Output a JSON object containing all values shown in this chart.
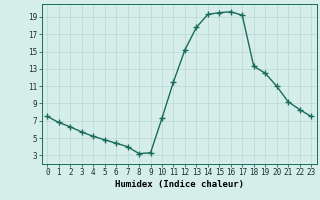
{
  "x": [
    0,
    1,
    2,
    3,
    4,
    5,
    6,
    7,
    8,
    9,
    10,
    11,
    12,
    13,
    14,
    15,
    16,
    17,
    18,
    19,
    20,
    21,
    22,
    23
  ],
  "y": [
    7.5,
    6.8,
    6.3,
    5.7,
    5.2,
    4.8,
    4.4,
    4.0,
    3.2,
    3.3,
    7.3,
    11.5,
    15.2,
    17.8,
    19.3,
    19.5,
    19.6,
    19.2,
    13.3,
    12.5,
    11.0,
    9.2,
    8.3,
    7.5
  ],
  "line_color": "#1a6b5a",
  "marker": "+",
  "marker_size": 4,
  "background_color": "#d6eeea",
  "grid_color": "#b8d8d4",
  "xlabel": "Humidex (Indice chaleur)",
  "ylabel": "",
  "xlim": [
    -0.5,
    23.5
  ],
  "ylim": [
    2.0,
    20.5
  ],
  "yticks": [
    3,
    5,
    7,
    9,
    11,
    13,
    15,
    17,
    19
  ],
  "xticks": [
    0,
    1,
    2,
    3,
    4,
    5,
    6,
    7,
    8,
    9,
    10,
    11,
    12,
    13,
    14,
    15,
    16,
    17,
    18,
    19,
    20,
    21,
    22,
    23
  ],
  "xtick_labels": [
    "0",
    "1",
    "2",
    "3",
    "4",
    "5",
    "6",
    "7",
    "8",
    "9",
    "10",
    "11",
    "12",
    "13",
    "14",
    "15",
    "16",
    "17",
    "18",
    "19",
    "20",
    "21",
    "22",
    "23"
  ],
  "line_width": 1.0,
  "tick_fontsize": 5.5,
  "xlabel_fontsize": 6.5
}
